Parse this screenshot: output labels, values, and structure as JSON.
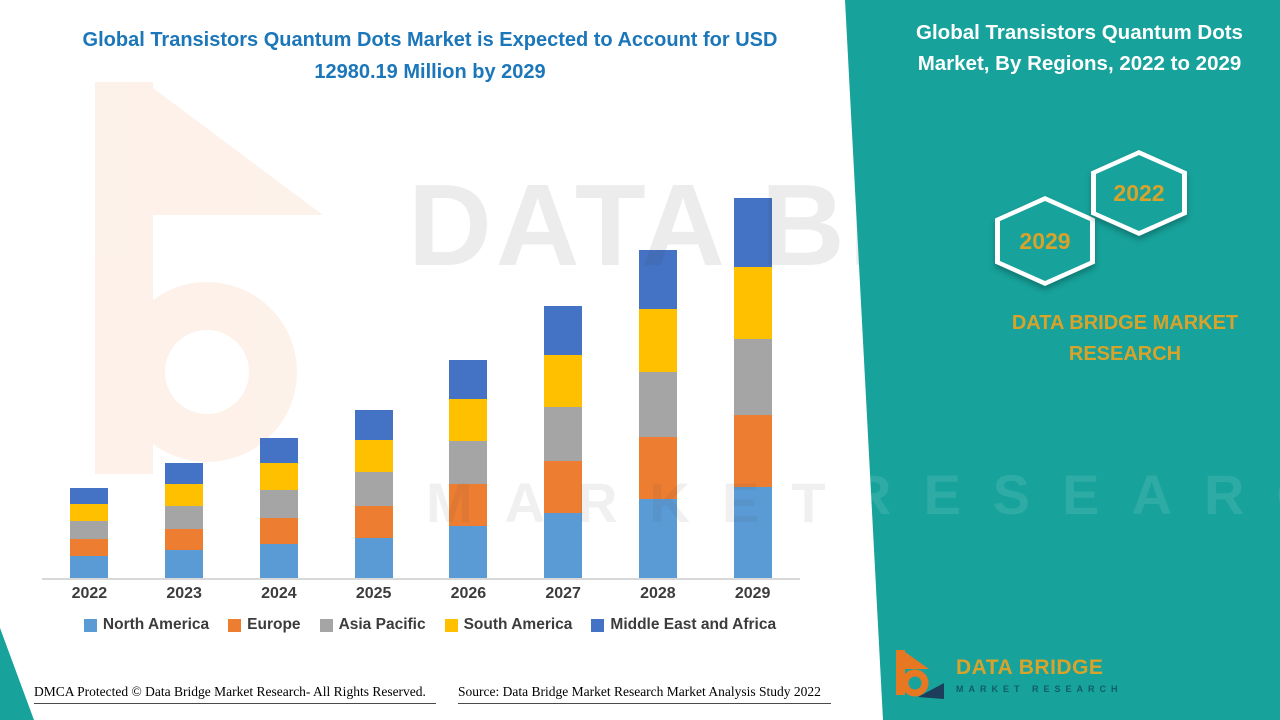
{
  "colors": {
    "panel_teal": "#17a29b",
    "title_blue": "#1b77b9",
    "accent_gold": "#d8a32b"
  },
  "page": {
    "title_line1": "Global Transistors Quantum Dots Market is Expected to Account for USD",
    "title_line2": "12980.19 Million by 2029"
  },
  "side_panel": {
    "heading": "Global Transistors Quantum Dots Market, By Regions, 2022 to 2029",
    "badge_back_year": "2029",
    "badge_front_year": "2022",
    "brand_text": "DATA BRIDGE MARKET RESEARCH"
  },
  "watermark": {
    "line1": "DATA BRIDGE",
    "line2": "MARKET RESEARCH",
    "panel_line": "RESEARCH",
    "logo": "data-bridge-b-mark"
  },
  "logo": {
    "icon": "data-bridge-b-icon",
    "name": "DATA BRIDGE",
    "subtitle": "MARKET RESEARCH"
  },
  "footer": {
    "dmca": "DMCA Protected © Data Bridge Market Research- All Rights Reserved.",
    "source": "Source: Data Bridge Market Research Market Analysis Study 2022"
  },
  "chart_data": {
    "type": "bar",
    "stacked": true,
    "title": "Global Transistors Quantum Dots Market, By Regions, 2022 to 2029",
    "unit": "USD Million",
    "categories": [
      "2022",
      "2023",
      "2024",
      "2025",
      "2026",
      "2027",
      "2028",
      "2029"
    ],
    "series": [
      {
        "name": "North America",
        "color": "#5B9BD5",
        "values": [
          740,
          945,
          1150,
          1380,
          1790,
          2230,
          2690,
          3115
        ]
      },
      {
        "name": "Europe",
        "color": "#ED7D31",
        "values": [
          585,
          750,
          910,
          1090,
          1420,
          1765,
          2130,
          2465
        ]
      },
      {
        "name": "Asia Pacific",
        "color": "#A5A5A5",
        "values": [
          615,
          785,
          960,
          1150,
          1490,
          1860,
          2245,
          2595
        ]
      },
      {
        "name": "South America",
        "color": "#FFC000",
        "values": [
          585,
          750,
          910,
          1090,
          1420,
          1765,
          2130,
          2465
        ]
      },
      {
        "name": "Middle East and Africa",
        "color": "#4472C4",
        "values": [
          555,
          705,
          860,
          1035,
          1340,
          1680,
          2020,
          2340.19
        ]
      }
    ],
    "totals": [
      3080,
      3935,
      4790,
      5745,
      7460,
      9300,
      11215,
      12980.19
    ],
    "ylim": [
      0,
      13000
    ],
    "annotation": "Expected to account for USD 12980.19 Million by 2029",
    "legend_position": "bottom",
    "gridlines": false,
    "values_estimated": true
  }
}
